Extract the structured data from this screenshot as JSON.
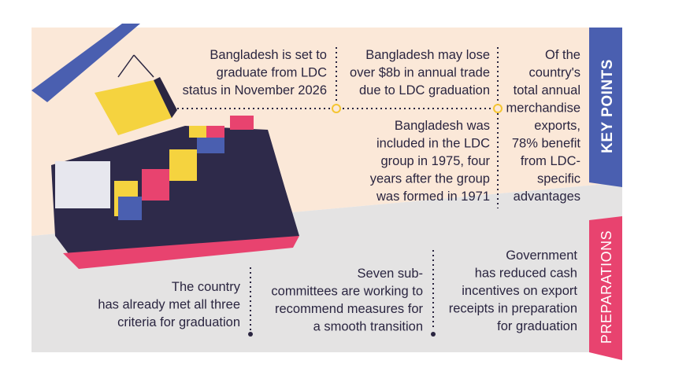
{
  "key_points": {
    "title": "KEY POINTS",
    "points": [
      {
        "lines": [
          "Bangladesh is set to",
          "graduate from LDC",
          "status in November 2026"
        ]
      },
      {
        "lines": [
          "Bangladesh may lose",
          "over $8b in annual trade",
          "due to LDC graduation"
        ]
      },
      {
        "lines": [
          "Bangladesh was",
          "included in the LDC",
          "group in 1975, four",
          "years after the group",
          "was formed in 1971"
        ]
      },
      {
        "lines": [
          "Of the",
          "country's",
          "total annual",
          "merchandise",
          "exports,",
          "78% benefit",
          "from LDC-",
          "specific",
          "advantages"
        ]
      }
    ]
  },
  "preparations": {
    "title": "PREPARATIONS",
    "items": [
      {
        "lines": [
          "The country",
          "has already met all three",
          "criteria for graduation"
        ]
      },
      {
        "lines": [
          "Seven sub-",
          "committees are working to",
          "recommend measures for",
          "a smooth transition"
        ]
      },
      {
        "lines": [
          "Government",
          "has reduced cash",
          "incentives on export",
          "receipts in preparation",
          "for graduation"
        ]
      }
    ]
  }
}
